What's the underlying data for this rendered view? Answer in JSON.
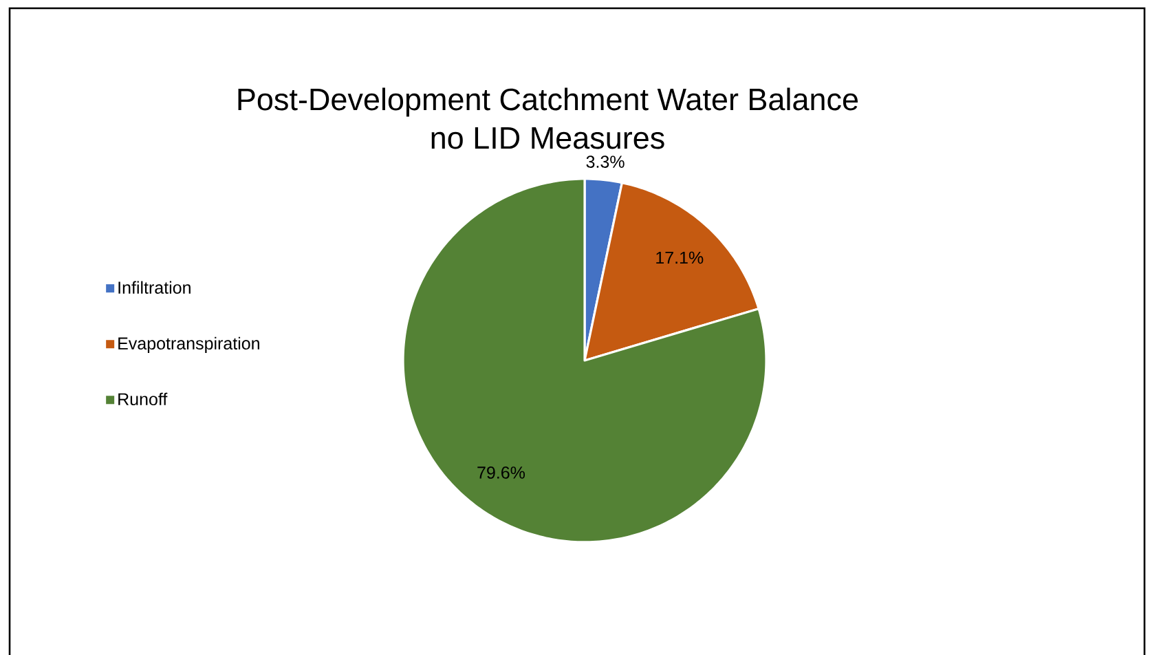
{
  "chart_data": {
    "type": "pie",
    "title": "Post-Development Catchment Water Balance no LID Measures",
    "categories": [
      "Infiltration",
      "Evapotranspiration",
      "Runoff"
    ],
    "values": [
      3.3,
      17.1,
      79.6
    ],
    "colors": [
      "#4472c4",
      "#c55a11",
      "#548235"
    ],
    "value_labels": [
      "3.3%",
      "17.1%",
      "79.6%"
    ],
    "legend": "left"
  }
}
